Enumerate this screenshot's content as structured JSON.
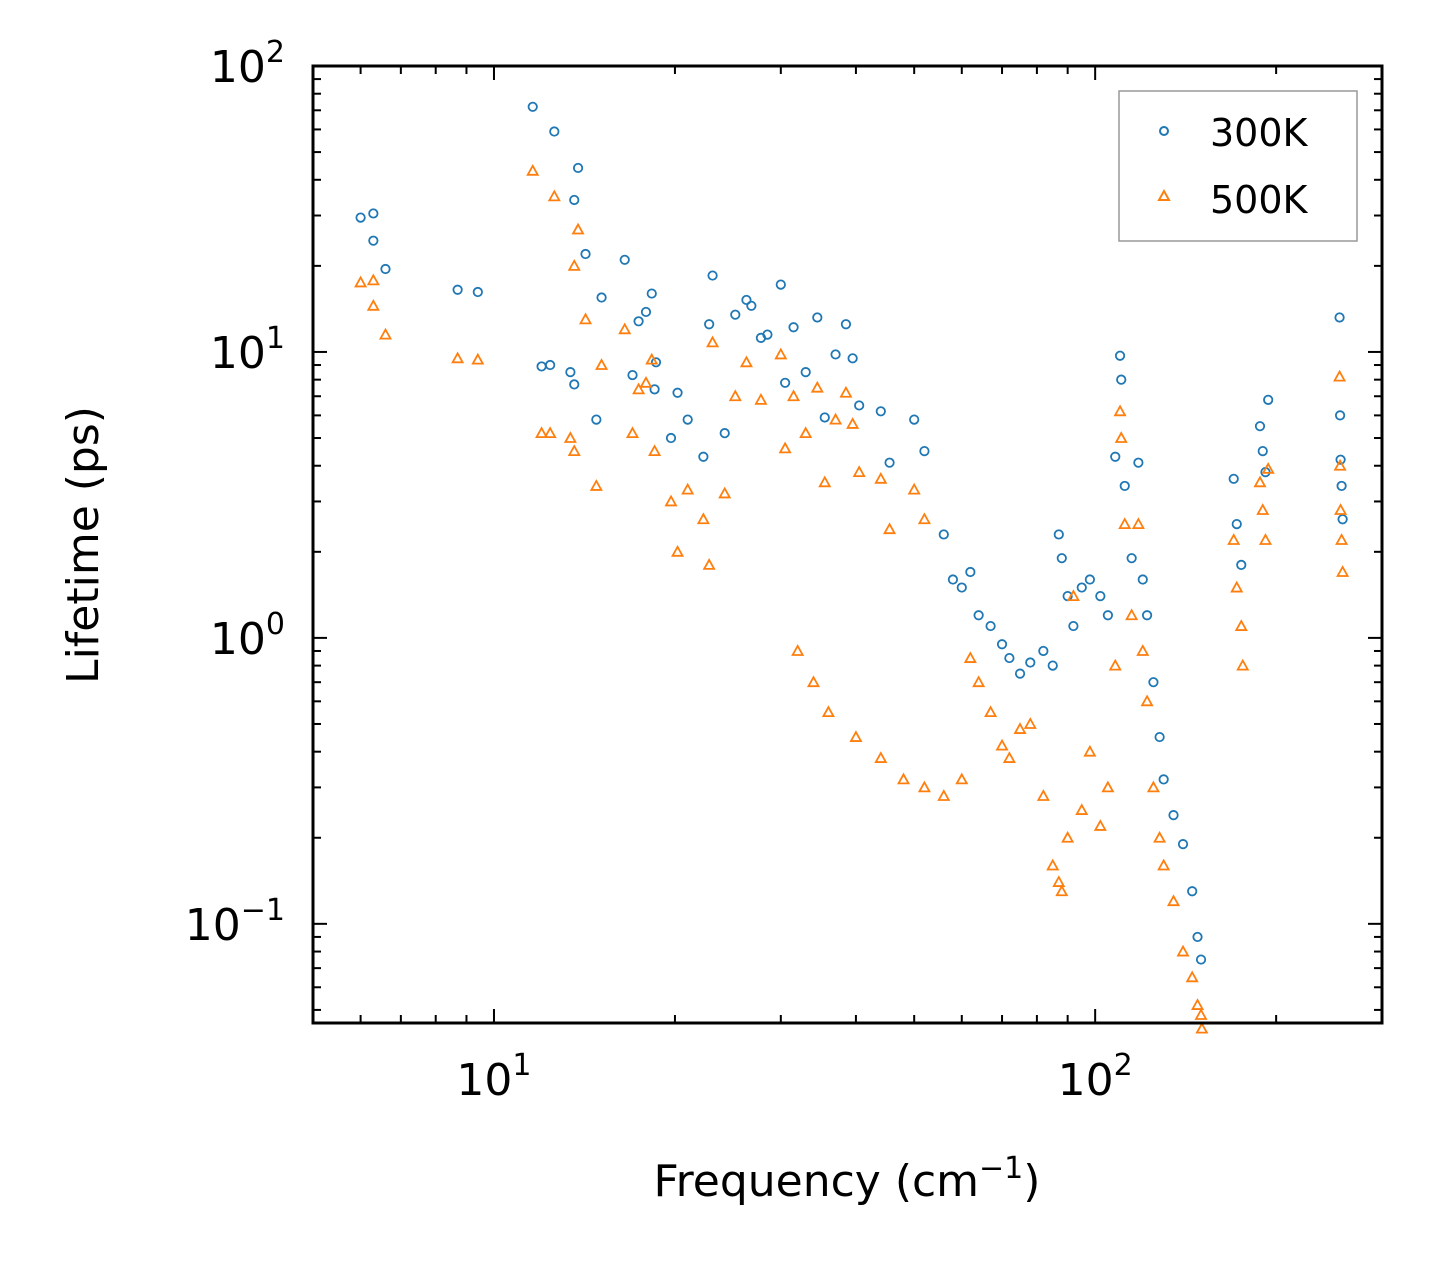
{
  "chart_data": {
    "type": "scatter",
    "xscale": "log",
    "yscale": "log",
    "xlim": [
      5,
      300
    ],
    "ylim": [
      0.045,
      100
    ],
    "xlabel": "Frequency (cm",
    "xlabel_sup": "−1",
    "xlabel_end": ")",
    "ylabel": "Lifetime (ps)",
    "x_ticks": [
      {
        "value": 10,
        "base": "10",
        "exp": "1"
      },
      {
        "value": 100,
        "base": "10",
        "exp": "2"
      }
    ],
    "y_ticks": [
      {
        "value": 0.1,
        "base": "10",
        "exp": "−1"
      },
      {
        "value": 1,
        "base": "10",
        "exp": "0"
      },
      {
        "value": 10,
        "base": "10",
        "exp": "1"
      },
      {
        "value": 100,
        "base": "10",
        "exp": "2"
      }
    ],
    "legend_position": "top-right",
    "series": [
      {
        "name": "300K",
        "marker": "circle",
        "color": "#1f77b4",
        "points": [
          [
            6.0,
            29.5
          ],
          [
            6.3,
            30.5
          ],
          [
            6.3,
            24.5
          ],
          [
            6.6,
            19.5
          ],
          [
            8.7,
            16.5
          ],
          [
            9.4,
            16.2
          ],
          [
            11.6,
            72
          ],
          [
            12.6,
            59
          ],
          [
            13.8,
            44
          ],
          [
            13.6,
            34
          ],
          [
            14.2,
            22
          ],
          [
            15.1,
            15.5
          ],
          [
            16.5,
            21
          ],
          [
            17.4,
            12.8
          ],
          [
            17.9,
            13.8
          ],
          [
            18.3,
            16
          ],
          [
            18.5,
            7.4
          ],
          [
            18.6,
            9.2
          ],
          [
            12.0,
            8.9
          ],
          [
            12.4,
            9
          ],
          [
            13.4,
            8.5
          ],
          [
            13.6,
            7.7
          ],
          [
            14.8,
            5.8
          ],
          [
            17.0,
            8.3
          ],
          [
            19.7,
            5
          ],
          [
            20.2,
            7.2
          ],
          [
            21.0,
            5.8
          ],
          [
            22.3,
            4.3
          ],
          [
            22.8,
            12.5
          ],
          [
            23.1,
            18.5
          ],
          [
            24.2,
            5.2
          ],
          [
            25.2,
            13.5
          ],
          [
            26.3,
            15.2
          ],
          [
            26.8,
            14.5
          ],
          [
            27.8,
            11.2
          ],
          [
            28.5,
            11.5
          ],
          [
            30.0,
            17.2
          ],
          [
            30.5,
            7.8
          ],
          [
            31.5,
            12.2
          ],
          [
            33.0,
            8.5
          ],
          [
            34.5,
            13.2
          ],
          [
            35.5,
            5.9
          ],
          [
            37.0,
            9.8
          ],
          [
            38.5,
            12.5
          ],
          [
            39.5,
            9.5
          ],
          [
            40.5,
            6.5
          ],
          [
            44.0,
            6.2
          ],
          [
            45.5,
            4.1
          ],
          [
            50.0,
            5.8
          ],
          [
            52.0,
            4.5
          ],
          [
            56.0,
            2.3
          ],
          [
            58.0,
            1.6
          ],
          [
            60.0,
            1.5
          ],
          [
            62.0,
            1.7
          ],
          [
            64.0,
            1.2
          ],
          [
            67.0,
            1.1
          ],
          [
            70.0,
            0.95
          ],
          [
            72.0,
            0.85
          ],
          [
            75.0,
            0.75
          ],
          [
            78.0,
            0.82
          ],
          [
            82.0,
            0.9
          ],
          [
            85.0,
            0.8
          ],
          [
            87.0,
            2.3
          ],
          [
            88.0,
            1.9
          ],
          [
            90.0,
            1.4
          ],
          [
            92.0,
            1.1
          ],
          [
            95.0,
            1.5
          ],
          [
            98.0,
            1.6
          ],
          [
            102.0,
            1.4
          ],
          [
            105.0,
            1.2
          ],
          [
            108.0,
            4.3
          ],
          [
            110.0,
            9.7
          ],
          [
            110.5,
            8.0
          ],
          [
            112.0,
            3.4
          ],
          [
            115.0,
            1.9
          ],
          [
            118.0,
            4.1
          ],
          [
            120.0,
            1.6
          ],
          [
            122.0,
            1.2
          ],
          [
            125.0,
            0.7
          ],
          [
            128.0,
            0.45
          ],
          [
            130.0,
            0.32
          ],
          [
            135.0,
            0.24
          ],
          [
            140.0,
            0.19
          ],
          [
            145.0,
            0.13
          ],
          [
            148.0,
            0.09
          ],
          [
            150.0,
            0.075
          ],
          [
            170.0,
            3.6
          ],
          [
            172.0,
            2.5
          ],
          [
            175.0,
            1.8
          ],
          [
            188.0,
            5.5
          ],
          [
            190.0,
            4.5
          ],
          [
            192.0,
            3.8
          ],
          [
            194.0,
            6.8
          ],
          [
            255.0,
            13.2
          ],
          [
            255.5,
            6.0
          ],
          [
            256.0,
            4.2
          ],
          [
            257.0,
            3.4
          ],
          [
            258.0,
            2.6
          ]
        ]
      },
      {
        "name": "500K",
        "marker": "triangle",
        "color": "#ff7f0e",
        "points": [
          [
            6.0,
            17.5
          ],
          [
            6.3,
            17.8
          ],
          [
            6.3,
            14.5
          ],
          [
            6.6,
            11.5
          ],
          [
            8.7,
            9.5
          ],
          [
            9.4,
            9.4
          ],
          [
            11.6,
            43
          ],
          [
            12.6,
            35
          ],
          [
            13.8,
            26.8
          ],
          [
            13.6,
            20
          ],
          [
            14.2,
            13
          ],
          [
            15.1,
            9
          ],
          [
            16.5,
            12
          ],
          [
            17.4,
            7.4
          ],
          [
            17.9,
            7.8
          ],
          [
            18.3,
            9.4
          ],
          [
            18.5,
            4.5
          ],
          [
            12.0,
            5.2
          ],
          [
            12.4,
            5.2
          ],
          [
            13.4,
            5
          ],
          [
            13.6,
            4.5
          ],
          [
            14.8,
            3.4
          ],
          [
            17.0,
            5.2
          ],
          [
            19.7,
            3
          ],
          [
            20.2,
            2
          ],
          [
            21.0,
            3.3
          ],
          [
            22.3,
            2.6
          ],
          [
            22.8,
            1.8
          ],
          [
            23.1,
            10.8
          ],
          [
            24.2,
            3.2
          ],
          [
            25.2,
            7
          ],
          [
            26.3,
            9.2
          ],
          [
            27.8,
            6.8
          ],
          [
            30.0,
            9.8
          ],
          [
            30.5,
            4.6
          ],
          [
            31.5,
            7
          ],
          [
            33.0,
            5.2
          ],
          [
            34.5,
            7.5
          ],
          [
            35.5,
            3.5
          ],
          [
            37.0,
            5.8
          ],
          [
            38.5,
            7.2
          ],
          [
            39.5,
            5.6
          ],
          [
            40.5,
            3.8
          ],
          [
            44.0,
            3.6
          ],
          [
            45.5,
            2.4
          ],
          [
            50.0,
            3.3
          ],
          [
            52.0,
            2.6
          ],
          [
            32.0,
            0.9
          ],
          [
            34.0,
            0.7
          ],
          [
            36.0,
            0.55
          ],
          [
            40.0,
            0.45
          ],
          [
            44.0,
            0.38
          ],
          [
            48.0,
            0.32
          ],
          [
            52.0,
            0.3
          ],
          [
            56.0,
            0.28
          ],
          [
            60.0,
            0.32
          ],
          [
            62.0,
            0.85
          ],
          [
            64.0,
            0.7
          ],
          [
            67.0,
            0.55
          ],
          [
            70.0,
            0.42
          ],
          [
            72.0,
            0.38
          ],
          [
            75.0,
            0.48
          ],
          [
            78.0,
            0.5
          ],
          [
            82.0,
            0.28
          ],
          [
            85.0,
            0.16
          ],
          [
            87.0,
            0.14
          ],
          [
            88.0,
            0.13
          ],
          [
            90.0,
            0.2
          ],
          [
            92.0,
            1.4
          ],
          [
            95.0,
            0.25
          ],
          [
            98.0,
            0.4
          ],
          [
            102.0,
            0.22
          ],
          [
            105.0,
            0.3
          ],
          [
            108.0,
            0.8
          ],
          [
            110.0,
            6.2
          ],
          [
            110.5,
            5.0
          ],
          [
            112.0,
            2.5
          ],
          [
            115.0,
            1.2
          ],
          [
            118.0,
            2.5
          ],
          [
            120.0,
            0.9
          ],
          [
            122.0,
            0.6
          ],
          [
            125.0,
            0.3
          ],
          [
            128.0,
            0.2
          ],
          [
            130.0,
            0.16
          ],
          [
            135.0,
            0.12
          ],
          [
            140.0,
            0.08
          ],
          [
            145.0,
            0.065
          ],
          [
            148.0,
            0.052
          ],
          [
            150.0,
            0.048
          ],
          [
            150.5,
            0.043
          ],
          [
            170.0,
            2.2
          ],
          [
            172.0,
            1.5
          ],
          [
            175.0,
            1.1
          ],
          [
            176.0,
            0.8
          ],
          [
            188.0,
            3.5
          ],
          [
            190.0,
            2.8
          ],
          [
            192.0,
            2.2
          ],
          [
            194.0,
            3.9
          ],
          [
            255.0,
            8.2
          ],
          [
            255.5,
            4.0
          ],
          [
            256.0,
            2.8
          ],
          [
            257.0,
            2.2
          ],
          [
            258.0,
            1.7
          ]
        ]
      }
    ]
  }
}
